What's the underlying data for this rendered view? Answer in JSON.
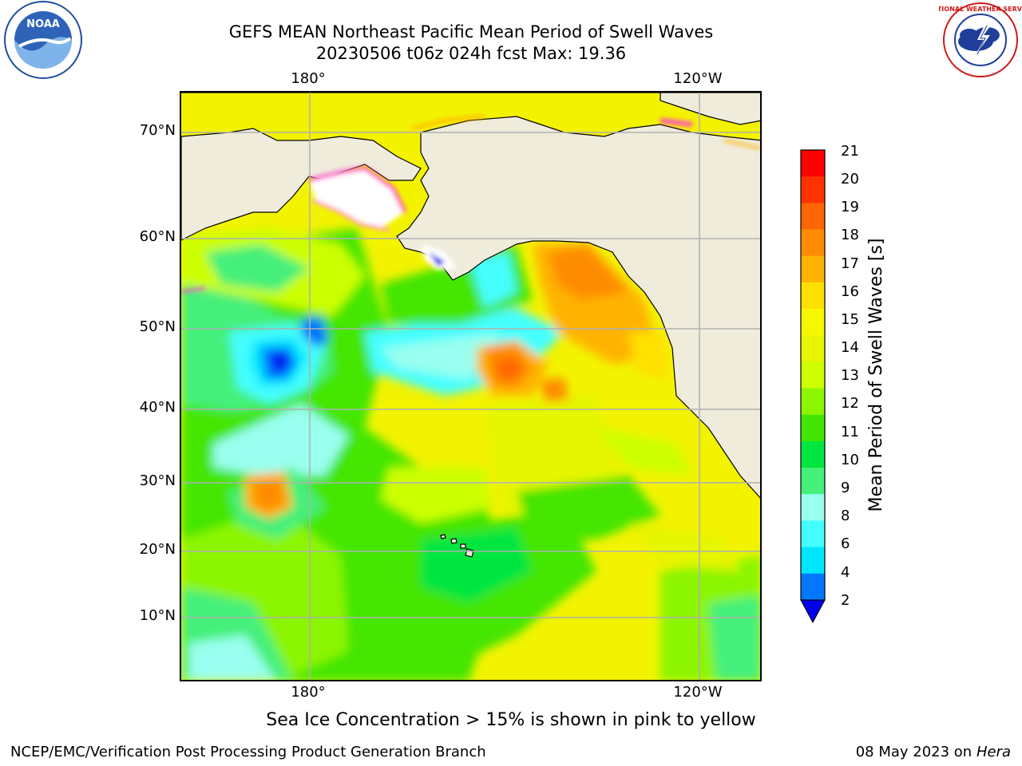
{
  "title_line1": "GEFS MEAN Northeast Pacific Mean Period of Swell Waves",
  "title_line2": "20230506 t06z 024h fcst   Max: 19.36",
  "logos": {
    "left": {
      "icon": "noaa-logo",
      "text": "NOAA"
    },
    "right": {
      "icon": "nws-logo",
      "text": "NATIONAL WEATHER SERVICE"
    }
  },
  "map": {
    "lat_labels": [
      "70°N",
      "60°N",
      "50°N",
      "40°N",
      "30°N",
      "20°N",
      "10°N"
    ],
    "lon_labels_top": [
      "180°",
      "120°W"
    ],
    "lon_labels_bottom": [
      "180°",
      "120°W"
    ],
    "land_color": "#efecdc",
    "grid_color": "#b0b0b0"
  },
  "colorbar": {
    "label": "Mean Period of Swell Waves [s]",
    "ticks": [
      "21",
      "20",
      "19",
      "18",
      "17",
      "16",
      "15",
      "14",
      "13",
      "12",
      "11",
      "10",
      "9",
      "8",
      "6",
      "4",
      "2"
    ],
    "colors_top_to_bottom": [
      "#ff0000",
      "#ff3300",
      "#ff6600",
      "#ff8c00",
      "#ffb300",
      "#ffe000",
      "#f7f700",
      "#e6f500",
      "#ccff00",
      "#8cf500",
      "#44e600",
      "#00e640",
      "#44f07a",
      "#99ffee",
      "#44ffff",
      "#00e6ff",
      "#0077ff"
    ],
    "under_color": "#0000ee"
  },
  "ice_note": "Sea Ice Concentration > 15% is shown in pink to yellow",
  "footer_left": "NCEP/EMC/Verification Post Processing Product Generation Branch",
  "footer_right_date": "08 May 2023 on",
  "footer_right_machine": "Hera"
}
